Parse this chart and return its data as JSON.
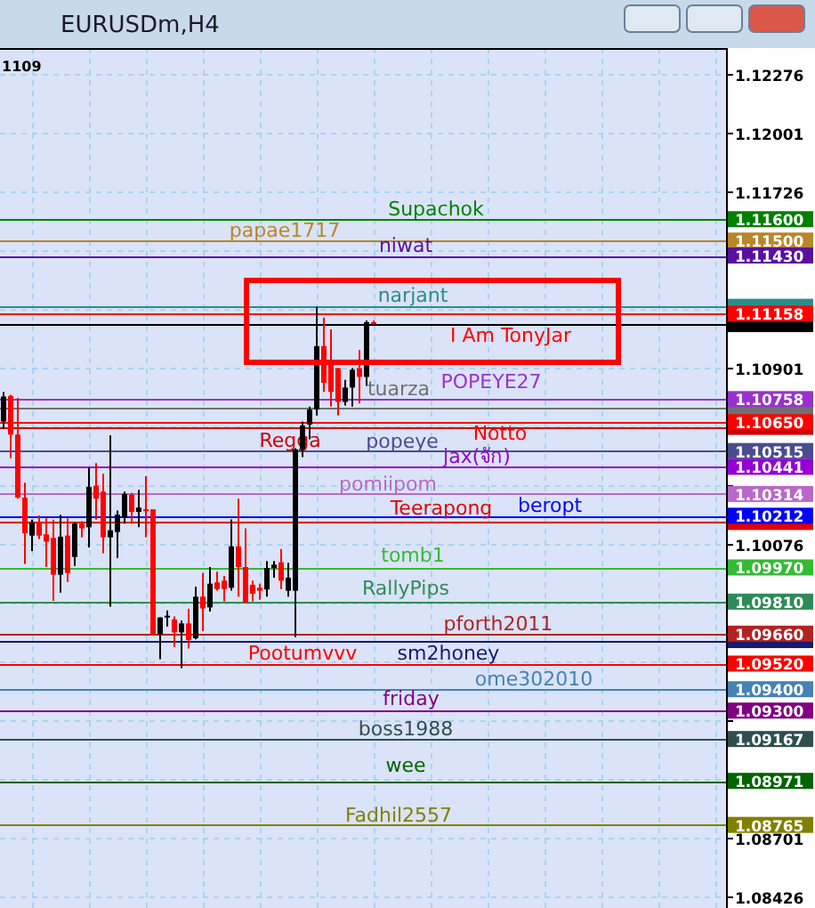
{
  "chart_data": {
    "type": "candlestick",
    "title": "EURUSDm,H4",
    "categories": [
      null,
      null,
      null,
      null,
      null,
      null,
      null,
      null,
      null,
      null,
      null,
      null,
      null,
      null,
      null,
      null,
      null,
      null,
      null,
      null,
      null,
      null,
      null,
      null,
      null,
      null,
      null,
      null,
      null,
      null,
      null,
      null,
      null,
      null,
      null,
      null,
      null,
      null,
      null,
      null,
      null,
      null,
      null,
      null,
      null,
      null,
      null,
      null,
      null,
      null,
      null,
      null,
      null,
      null,
      null,
      null,
      null,
      null,
      null,
      null,
      null,
      null,
      null,
      null,
      null,
      null,
      null,
      null,
      null,
      null,
      null,
      null,
      null,
      null,
      null,
      null,
      null,
      null,
      null,
      null,
      null,
      null,
      null,
      null,
      null,
      null,
      null,
      null,
      null,
      null,
      null,
      null,
      null,
      null,
      null,
      null,
      null,
      null,
      null,
      null,
      null,
      null
    ],
    "ohlc": [
      [
        1.10653,
        1.10792,
        1.1062,
        1.1077
      ],
      [
        1.10773,
        1.10778,
        1.10481,
        1.10592
      ],
      [
        1.10592,
        1.10764,
        1.10292,
        1.10297
      ],
      [
        1.10297,
        1.10367,
        1.09986,
        1.1013
      ],
      [
        1.10119,
        1.10194,
        1.10047,
        1.1018
      ],
      [
        1.1018,
        1.10214,
        1.10103,
        1.10119
      ],
      [
        1.10125,
        1.10203,
        1.09972,
        1.10091
      ],
      [
        1.10108,
        1.10194,
        1.09813,
        1.09936
      ],
      [
        1.09936,
        1.10217,
        1.09852,
        1.10114
      ],
      [
        1.10119,
        1.102,
        1.09902,
        1.09944
      ],
      [
        1.10019,
        1.1018,
        1.09977,
        1.10175
      ],
      [
        1.10175,
        1.10186,
        1.10111,
        1.10153
      ],
      [
        1.10158,
        1.10436,
        1.10064,
        1.10347
      ],
      [
        1.10353,
        1.10458,
        1.10194,
        1.10292
      ],
      [
        1.10325,
        1.10408,
        1.10036,
        1.10111
      ],
      [
        1.10111,
        1.10589,
        1.09786,
        1.10144
      ],
      [
        1.10136,
        1.10236,
        1.10014,
        1.10217
      ],
      [
        1.10203,
        1.10325,
        1.10175,
        1.10314
      ],
      [
        1.10311,
        1.10319,
        1.10175,
        1.1023
      ],
      [
        1.1023,
        1.10333,
        1.10158,
        1.1025
      ],
      [
        1.10242,
        1.10397,
        1.10111,
        1.10236
      ],
      [
        1.10242,
        1.10242,
        1.09652,
        1.09658
      ],
      [
        1.09658,
        1.09736,
        1.09541,
        1.09736
      ],
      [
        1.09736,
        1.09769,
        1.09694,
        1.09744
      ],
      [
        1.09727,
        1.09741,
        1.09597,
        1.09666
      ],
      [
        1.09666,
        1.09722,
        1.09499,
        1.09708
      ],
      [
        1.09708,
        1.09777,
        1.09591,
        1.0963
      ],
      [
        1.09639,
        1.0988,
        1.09633,
        1.09833
      ],
      [
        1.09833,
        1.09944,
        1.09672,
        1.09778
      ],
      [
        1.09783,
        1.09972,
        1.09764,
        1.09894
      ],
      [
        1.099,
        1.0995,
        1.09861,
        1.09869
      ],
      [
        1.09908,
        1.0993,
        1.09811,
        1.09869
      ],
      [
        1.09875,
        1.10195,
        1.09861,
        1.10069
      ],
      [
        1.10069,
        1.10292,
        1.09833,
        1.09972
      ],
      [
        1.09972,
        1.10153,
        1.09805,
        1.09805
      ],
      [
        1.09889,
        1.09908,
        1.09811,
        1.09847
      ],
      [
        1.09875,
        1.09894,
        1.09819,
        1.09861
      ],
      [
        1.09867,
        1.1,
        1.09833,
        1.09967
      ],
      [
        1.09967,
        1.1,
        1.09922,
        1.09983
      ],
      [
        1.09994,
        1.10056,
        1.09869,
        1.09908
      ],
      [
        1.09861,
        1.09992,
        1.09833,
        1.09922
      ],
      [
        1.09861,
        1.10528,
        1.09644,
        1.10523
      ],
      [
        1.10523,
        1.10653,
        1.10486,
        1.10634
      ],
      [
        1.10639,
        1.10723,
        1.1057,
        1.10709
      ],
      [
        1.10709,
        1.1119,
        1.10681,
        1.11006
      ],
      [
        1.11006,
        1.1114,
        1.10792,
        1.10834
      ],
      [
        1.10923,
        1.11084,
        1.10723,
        1.10792
      ],
      [
        1.10903,
        1.10903,
        1.10681,
        1.10745
      ],
      [
        1.10745,
        1.10848,
        1.10728,
        1.10812
      ],
      [
        1.10812,
        1.10903,
        1.10723,
        1.10895
      ],
      [
        1.10903,
        1.10987,
        1.10737,
        1.10862
      ],
      [
        1.10862,
        1.11126,
        1.1082,
        1.11118
      ],
      [
        1.11118,
        1.11126,
        1.11106,
        1.11109
      ],
      null,
      null,
      null,
      null,
      null,
      null,
      null,
      null,
      null,
      null,
      null,
      null,
      null,
      null,
      null,
      null,
      null,
      null,
      null,
      null,
      null,
      null,
      null,
      null,
      null,
      null,
      null,
      null,
      null,
      null,
      null,
      null,
      null,
      null,
      null,
      null,
      null,
      null,
      null,
      null,
      null,
      null,
      null,
      null,
      null,
      null,
      null,
      null,
      null
    ],
    "ylim": [
      1.08376,
      1.12401
    ],
    "yticks": [
      {
        "value": 1.08426,
        "label": "1.08426"
      },
      {
        "value": 1.08701,
        "label": "1.08701"
      },
      {
        "value": 1.08976,
        "label": null
      },
      {
        "value": 1.09251,
        "label": null
      },
      {
        "value": 1.09526,
        "label": null
      },
      {
        "value": 1.09801,
        "label": null
      },
      {
        "value": 1.10076,
        "label": "1.10076"
      },
      {
        "value": 1.10351,
        "label": null
      },
      {
        "value": 1.10626,
        "label": null
      },
      {
        "value": 1.10901,
        "label": "1.10901"
      },
      {
        "value": 1.11176,
        "label": null
      },
      {
        "value": 1.11451,
        "label": null
      },
      {
        "value": 1.11726,
        "label": "1.11726"
      },
      {
        "value": 1.12001,
        "label": "1.12001"
      },
      {
        "value": 1.12276,
        "label": "1.12276"
      },
      {
        "value": 1.116,
        "label": "1.11600"
      },
      {
        "value": 1.115,
        "label": "1.11500"
      },
      {
        "value": 1.1143,
        "label": "1.11430"
      },
      {
        "value": 1.1119,
        "label": null
      },
      {
        "value": 1.11158,
        "label": "1.11158"
      },
      {
        "value": 1.11109,
        "label": null
      },
      {
        "value": 1.10758,
        "label": "1.10758"
      },
      {
        "value": 1.10716,
        "label": null
      },
      {
        "value": 1.1065,
        "label": "1.10650"
      },
      {
        "value": 1.10628,
        "label": null
      },
      {
        "value": 1.10515,
        "label": "1.10515"
      },
      {
        "value": 1.10441,
        "label": "1.10441"
      },
      {
        "value": 1.10314,
        "label": "1.10314"
      },
      {
        "value": 1.10212,
        "label": "1.10212"
      },
      {
        "value": 1.10183,
        "label": null
      },
      {
        "value": 1.0997,
        "label": "1.09970"
      },
      {
        "value": 1.0981,
        "label": "1.09810"
      },
      {
        "value": 1.0966,
        "label": "1.09660"
      },
      {
        "value": 1.0963,
        "label": null
      },
      {
        "value": 1.0952,
        "label": "1.09520"
      },
      {
        "value": 1.094,
        "label": "1.09400"
      },
      {
        "value": 1.093,
        "label": "1.09300"
      },
      {
        "value": 1.09167,
        "label": "1.09167"
      },
      {
        "value": 1.08971,
        "label": "1.08971"
      },
      {
        "value": 1.08765,
        "label": "1.08765"
      }
    ],
    "grid": true,
    "tick_labels": "y",
    "ref_lines": [
      {
        "axis": "y",
        "value": 1.116,
        "label": "Supachok",
        "color": "#008000"
      },
      {
        "axis": "y",
        "value": 1.115,
        "label": "papae1717",
        "color": "#b8862b"
      },
      {
        "axis": "y",
        "value": 1.1143,
        "label": "niwat",
        "color": "#5b0f9e"
      },
      {
        "axis": "y",
        "value": 1.1119,
        "label": "narjant",
        "color": "#2e8b8b"
      },
      {
        "axis": "y",
        "value": 1.11158,
        "label": "I Am TonyJar",
        "color": "#ff0000"
      },
      {
        "axis": "y",
        "value": 1.11109,
        "label": null,
        "color": "#000000"
      },
      {
        "axis": "y",
        "value": 1.10758,
        "label": "POPEYE27",
        "color": "#9932cc"
      },
      {
        "axis": "y",
        "value": 1.10716,
        "label": "tuarza",
        "color": "#707070"
      },
      {
        "axis": "y",
        "value": 1.1065,
        "label": "Notto",
        "color": "#ff0000"
      },
      {
        "axis": "y",
        "value": 1.10628,
        "label": "Regga",
        "color": "#cc0000"
      },
      {
        "axis": "y",
        "value": 1.10515,
        "label": "popeye",
        "color": "#4b4b8f"
      },
      {
        "axis": "y",
        "value": 1.10441,
        "label": "jax(จัก)",
        "color": "#9400d3"
      },
      {
        "axis": "y",
        "value": 1.10314,
        "label": "pomiipom",
        "color": "#ba68c8"
      },
      {
        "axis": "y",
        "value": 1.10212,
        "label": "beropt",
        "color": "#0000ff"
      },
      {
        "axis": "y",
        "value": 1.10183,
        "label": "Teerapong",
        "color": "#e00000"
      },
      {
        "axis": "y",
        "value": 1.0997,
        "label": "tomb1",
        "color": "#33bb33"
      },
      {
        "axis": "y",
        "value": 1.0981,
        "label": "RallyPips",
        "color": "#2e8b57"
      },
      {
        "axis": "y",
        "value": 1.0966,
        "label": "pforth2011",
        "color": "#b22222"
      },
      {
        "axis": "y",
        "value": 1.0963,
        "label": "sm2honey",
        "color": "#191970"
      },
      {
        "axis": "y",
        "value": 1.0952,
        "label": "Pootumvvv",
        "color": "#ff0000"
      },
      {
        "axis": "y",
        "value": 1.094,
        "label": "ome302010",
        "color": "#4682b4"
      },
      {
        "axis": "y",
        "value": 1.093,
        "label": "friday",
        "color": "#800080"
      },
      {
        "axis": "y",
        "value": 1.09167,
        "label": "boss1988",
        "color": "#2f4f4f"
      },
      {
        "axis": "y",
        "value": 1.08971,
        "label": "wee",
        "color": "#006400"
      },
      {
        "axis": "y",
        "value": 1.08765,
        "label": "Fadhil2557",
        "color": "#808000"
      }
    ],
    "annotations": [
      "1109"
    ]
  }
}
